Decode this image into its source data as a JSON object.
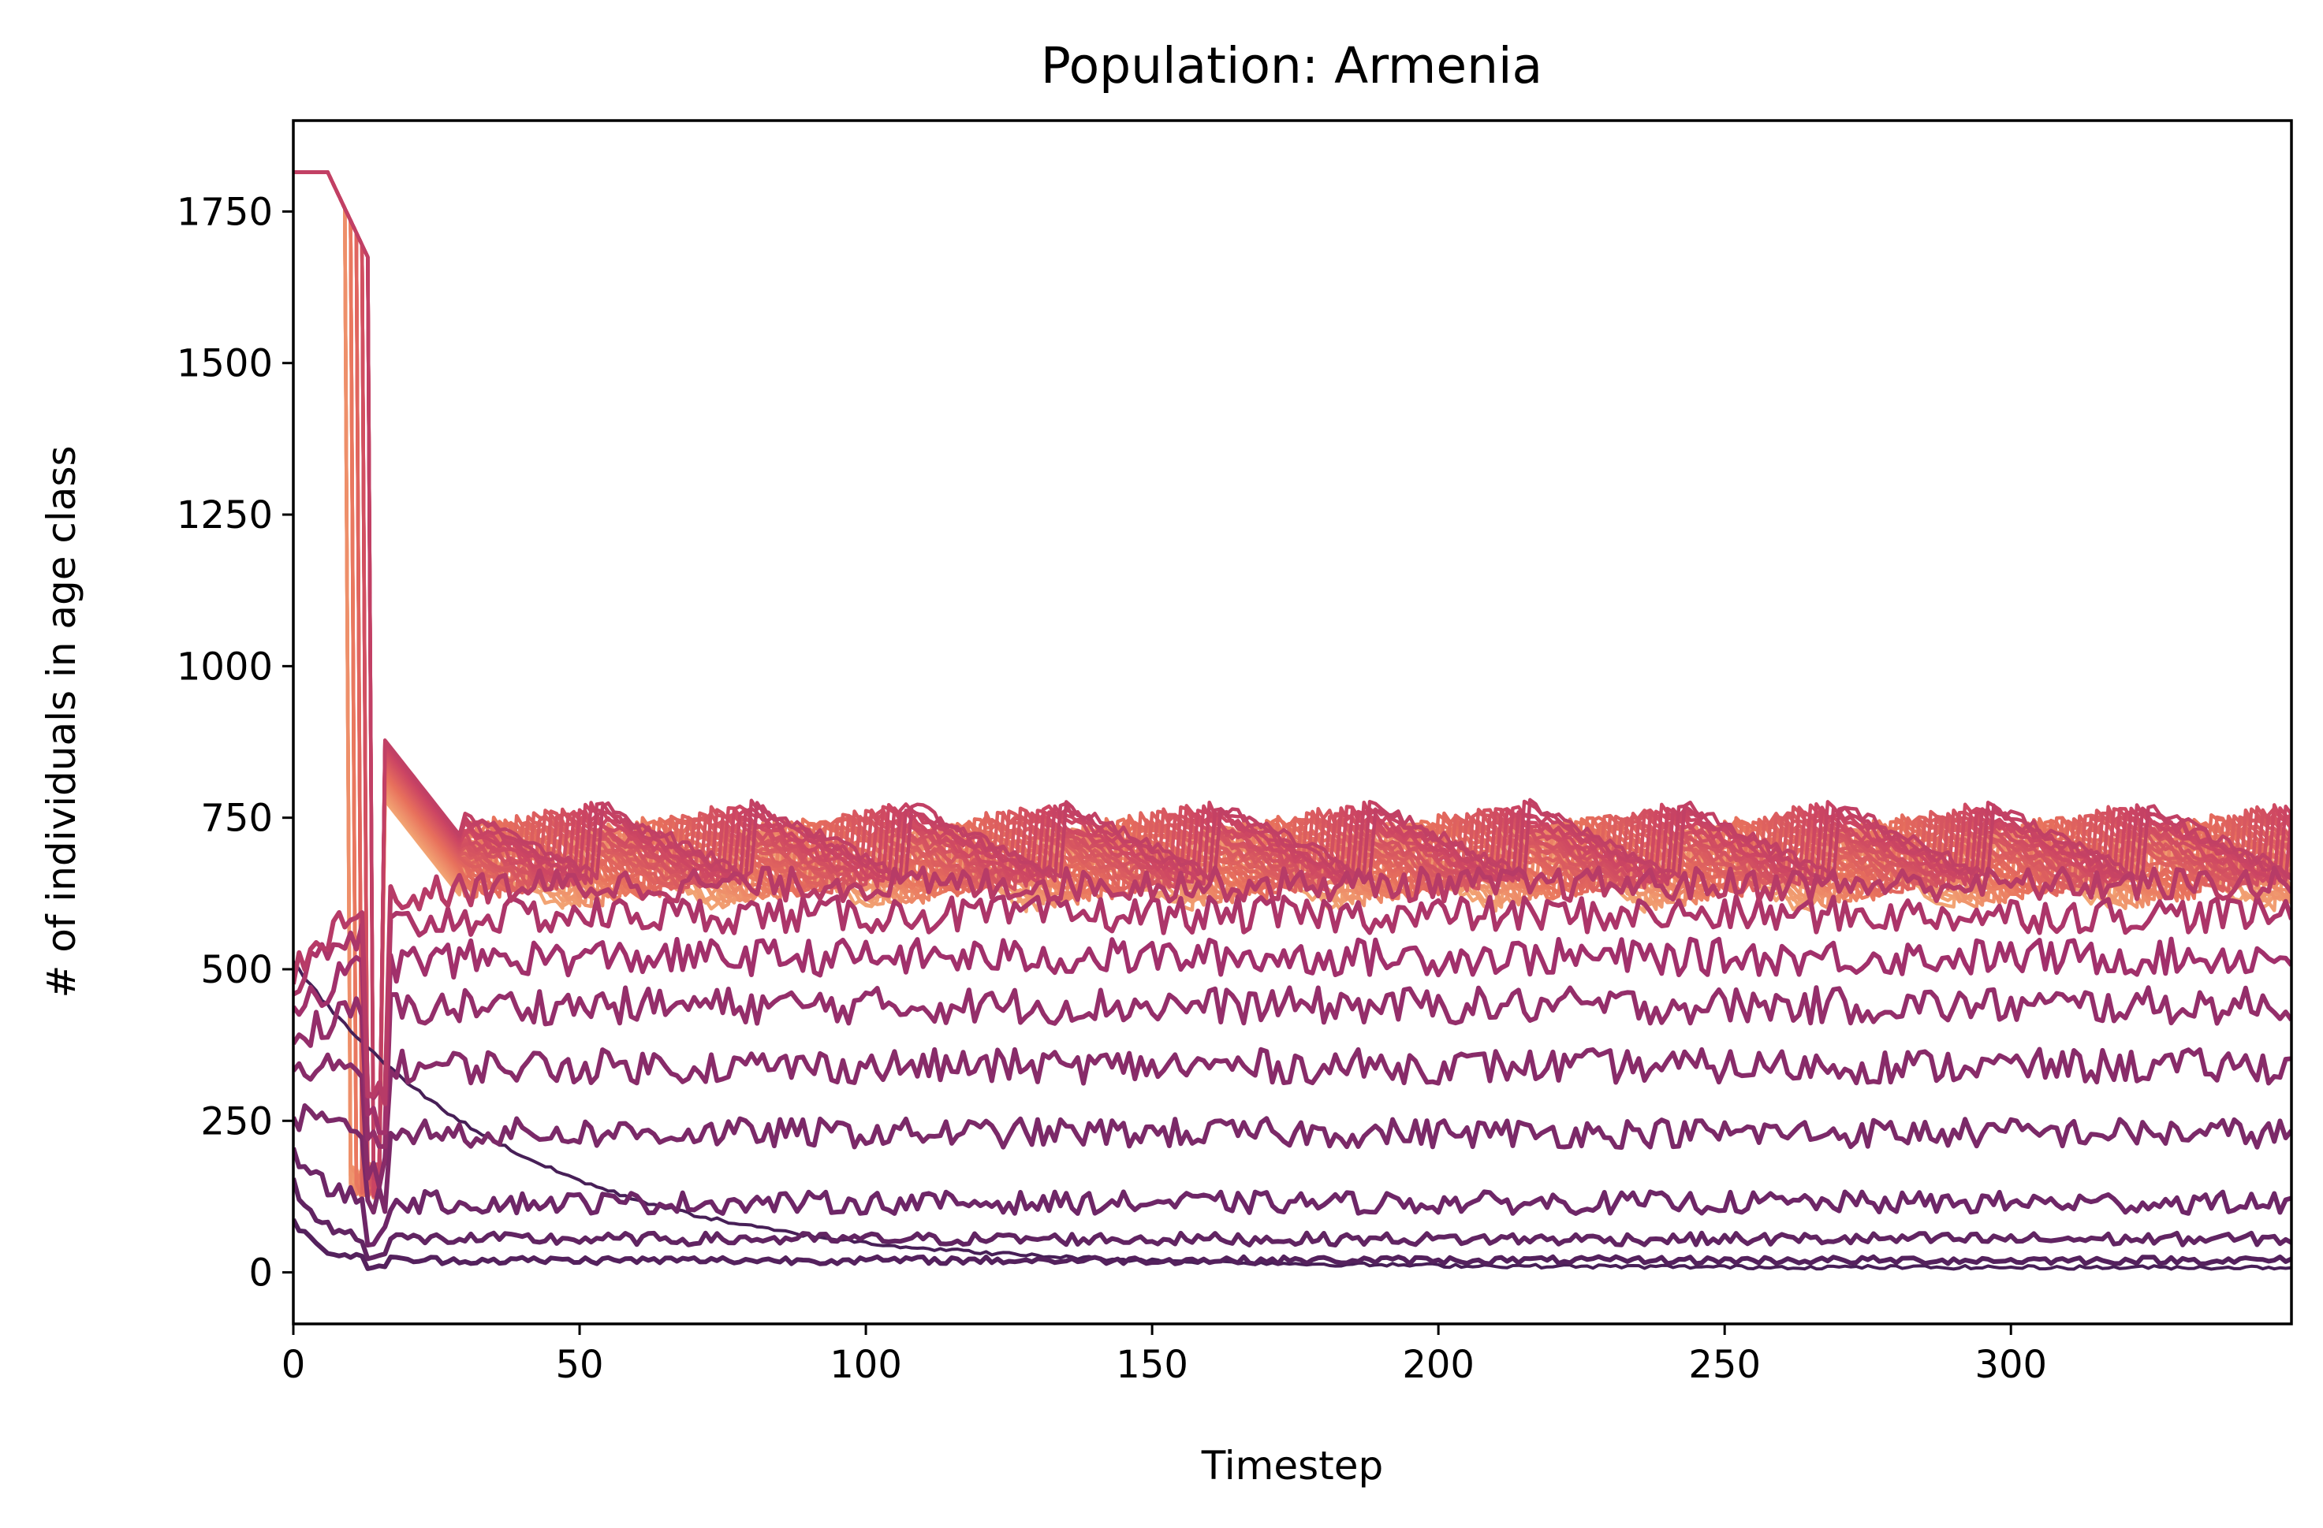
{
  "chart_data": {
    "type": "line",
    "title": "Population: Armenia",
    "xlabel": "Timestep",
    "ylabel": "# of individuals in age class",
    "xlim": [
      0,
      349
    ],
    "ylim": [
      -85,
      1900
    ],
    "x_ticks": [
      0,
      50,
      100,
      150,
      200,
      250,
      300
    ],
    "y_ticks": [
      0,
      250,
      500,
      750,
      1000,
      1250,
      1500,
      1750
    ],
    "grid": false,
    "legend": "none",
    "colormap": [
      "#3a1c52",
      "#6e2667",
      "#a1306b",
      "#cc4563",
      "#e8715c",
      "#f2a474"
    ],
    "description_of_series": "Many age classes; each approximated by a smoothed profile: initial value, transient peak value and timing, and long-run noisy plateau level.",
    "series": [
      {
        "initial": 510,
        "plateau": 8,
        "decay": 40,
        "noise": 3,
        "class_index": 0
      },
      {
        "initial": 90,
        "plateau": 20,
        "decay": 4,
        "noise": 6,
        "class_index": 1
      },
      {
        "initial": 150,
        "plateau": 55,
        "decay": 4,
        "noise": 10,
        "class_index": 2
      },
      {
        "initial": 200,
        "plateau": 115,
        "decay": 5,
        "noise": 18,
        "class_index": 3
      },
      {
        "initial": 260,
        "plateau": 230,
        "decay": 6,
        "noise": 24,
        "class_index": 4
      },
      {
        "initial": 320,
        "plateau": 340,
        "decay": 7,
        "noise": 28,
        "class_index": 5
      },
      {
        "initial": 380,
        "plateau": 440,
        "decay": 8,
        "noise": 30,
        "class_index": 6
      },
      {
        "initial": 430,
        "plateau": 520,
        "decay": 9,
        "noise": 30,
        "class_index": 7
      },
      {
        "initial": 470,
        "plateau": 590,
        "decay": 10,
        "noise": 30,
        "class_index": 8
      },
      {
        "initial": 500,
        "plateau": 640,
        "decay": 11,
        "noise": 28,
        "class_index": 9
      }
    ],
    "band": {
      "initial_peak": 1815,
      "initial_peak_end": 14,
      "second_peak": 890,
      "second_peak_start": 15,
      "plateau_low": 610,
      "plateau_high": 770
    }
  }
}
